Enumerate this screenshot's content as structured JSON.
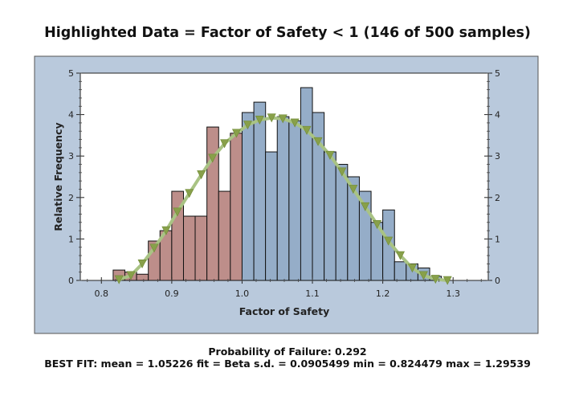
{
  "chart_data": {
    "type": "bar",
    "title": "Highlighted Data = Factor of Safety < 1 (146 of 500 samples)",
    "xlabel": "Factor of Safety",
    "ylabel": "Relative Frequency",
    "xlim": [
      0.77,
      1.35
    ],
    "ylim": [
      0,
      5
    ],
    "x_ticks": [
      "0.8",
      "0.9",
      "1.0",
      "1.1",
      "1.2",
      "1.3"
    ],
    "y_ticks": [
      "0",
      "1",
      "2",
      "3",
      "4",
      "5"
    ],
    "bin_width": 0.0167,
    "bins": [
      {
        "start": 0.8167,
        "value": 0.25,
        "highlighted": true
      },
      {
        "start": 0.8333,
        "value": 0.2,
        "highlighted": true
      },
      {
        "start": 0.85,
        "value": 0.15,
        "highlighted": true
      },
      {
        "start": 0.8667,
        "value": 0.95,
        "highlighted": true
      },
      {
        "start": 0.8833,
        "value": 1.2,
        "highlighted": true
      },
      {
        "start": 0.9,
        "value": 2.15,
        "highlighted": true
      },
      {
        "start": 0.9167,
        "value": 1.55,
        "highlighted": true
      },
      {
        "start": 0.9333,
        "value": 1.55,
        "highlighted": true
      },
      {
        "start": 0.95,
        "value": 3.7,
        "highlighted": true
      },
      {
        "start": 0.9667,
        "value": 2.15,
        "highlighted": true
      },
      {
        "start": 0.9833,
        "value": 3.55,
        "highlighted": true
      },
      {
        "start": 1.0,
        "value": 4.05,
        "highlighted": false
      },
      {
        "start": 1.0167,
        "value": 4.3,
        "highlighted": false
      },
      {
        "start": 1.0333,
        "value": 3.1,
        "highlighted": false
      },
      {
        "start": 1.05,
        "value": 3.95,
        "highlighted": false
      },
      {
        "start": 1.0667,
        "value": 3.85,
        "highlighted": false
      },
      {
        "start": 1.0833,
        "value": 4.65,
        "highlighted": false
      },
      {
        "start": 1.1,
        "value": 4.05,
        "highlighted": false
      },
      {
        "start": 1.1167,
        "value": 3.1,
        "highlighted": false
      },
      {
        "start": 1.1333,
        "value": 2.8,
        "highlighted": false
      },
      {
        "start": 1.15,
        "value": 2.5,
        "highlighted": false
      },
      {
        "start": 1.1667,
        "value": 2.15,
        "highlighted": false
      },
      {
        "start": 1.1833,
        "value": 1.4,
        "highlighted": false
      },
      {
        "start": 1.2,
        "value": 1.7,
        "highlighted": false
      },
      {
        "start": 1.2167,
        "value": 0.45,
        "highlighted": false
      },
      {
        "start": 1.2333,
        "value": 0.4,
        "highlighted": false
      },
      {
        "start": 1.25,
        "value": 0.3,
        "highlighted": false
      },
      {
        "start": 1.2667,
        "value": 0.1,
        "highlighted": false
      }
    ],
    "fit_curve": {
      "x": [
        0.825,
        0.842,
        0.858,
        0.875,
        0.892,
        0.908,
        0.925,
        0.942,
        0.958,
        0.975,
        0.992,
        1.008,
        1.025,
        1.042,
        1.058,
        1.075,
        1.092,
        1.108,
        1.125,
        1.142,
        1.158,
        1.175,
        1.192,
        1.208,
        1.225,
        1.242,
        1.258,
        1.275,
        1.292
      ],
      "y": [
        0.02,
        0.12,
        0.4,
        0.78,
        1.2,
        1.65,
        2.1,
        2.55,
        2.95,
        3.3,
        3.55,
        3.75,
        3.87,
        3.92,
        3.9,
        3.8,
        3.62,
        3.35,
        3.02,
        2.62,
        2.2,
        1.78,
        1.35,
        0.95,
        0.6,
        0.3,
        0.12,
        0.03,
        0.0
      ]
    },
    "colors": {
      "highlighted": "#bd8e8a",
      "normal": "#95adc8",
      "curve": "#a9c384",
      "markers": "#88a04a",
      "frame_bg": "#b9c9dc",
      "bar_edge": "#111111"
    },
    "grid": false
  },
  "footer": {
    "probability": "Probability of Failure: 0.292",
    "best_fit": "BEST FIT: mean = 1.05226 fit = Beta s.d. = 0.0905499 min = 0.824479 max = 1.29539"
  }
}
